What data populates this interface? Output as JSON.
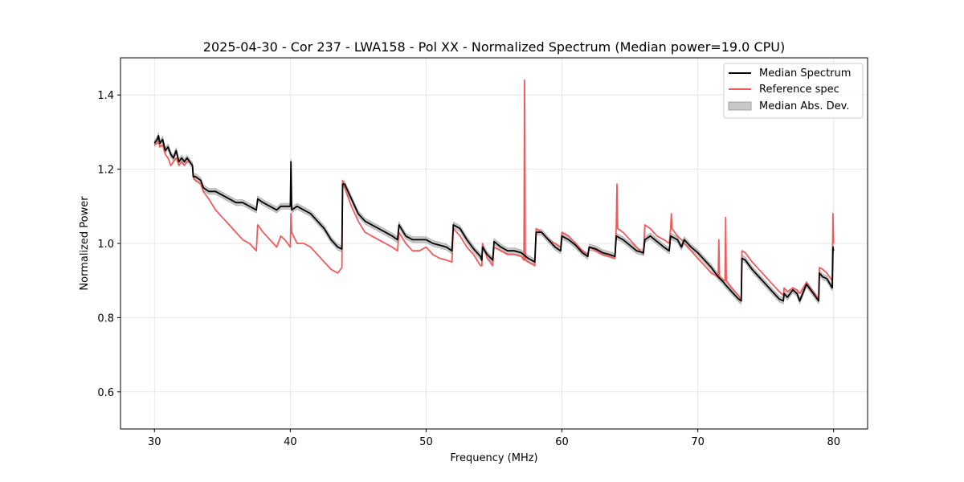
{
  "chart_data": {
    "type": "line",
    "title": "2025-04-30 - Cor 237 - LWA158 - Pol XX - Normalized Spectrum (Median power=19.0 CPU)",
    "xlabel": "Frequency (MHz)",
    "ylabel": "Normalized Power",
    "xlim": [
      27.5,
      82.5
    ],
    "ylim": [
      0.5,
      1.5
    ],
    "xticks": [
      30,
      40,
      50,
      60,
      70,
      80
    ],
    "yticks": [
      0.6,
      0.8,
      1.0,
      1.2,
      1.4
    ],
    "grid": true,
    "legend_position": "top-right",
    "legend": [
      "Median Spectrum",
      "Reference spec",
      "Median Abs. Dev."
    ],
    "colors": {
      "median": "#000000",
      "reference": "#f05a5a",
      "mad_fill": "#c8c8c8",
      "mad_edge": "#a0a0a0",
      "grid": "#e6e6e6"
    },
    "mad_halfwidth": 0.008,
    "series": [
      {
        "name": "Median Spectrum",
        "x": [
          30.0,
          30.2,
          30.3,
          30.4,
          30.6,
          30.8,
          31.0,
          31.2,
          31.4,
          31.6,
          31.8,
          32.0,
          32.2,
          32.4,
          32.6,
          32.8,
          32.85,
          33.0,
          33.4,
          33.6,
          34.0,
          34.5,
          35.0,
          35.5,
          36.0,
          36.5,
          37.0,
          37.5,
          37.6,
          38.0,
          38.5,
          39.0,
          39.3,
          39.6,
          40.0,
          40.05,
          40.1,
          40.5,
          41.0,
          41.5,
          42.0,
          42.5,
          43.0,
          43.5,
          43.8,
          43.85,
          44.0,
          44.5,
          45.0,
          45.5,
          46.0,
          46.5,
          47.0,
          47.5,
          47.9,
          48.0,
          48.5,
          49.0,
          49.5,
          50.0,
          50.5,
          51.0,
          51.5,
          51.9,
          52.0,
          52.5,
          53.0,
          53.5,
          54.0,
          54.1,
          54.15,
          54.5,
          54.9,
          55.0,
          55.5,
          56.0,
          56.5,
          57.0,
          57.5,
          58.0,
          58.1,
          58.5,
          59.0,
          59.5,
          59.9,
          60.0,
          60.5,
          61.0,
          61.5,
          61.9,
          62.0,
          62.5,
          63.0,
          63.5,
          63.9,
          64.0,
          64.5,
          65.0,
          65.5,
          66.0,
          66.1,
          66.5,
          67.0,
          67.5,
          67.9,
          68.0,
          68.5,
          68.8,
          69.0,
          69.5,
          70.0,
          70.5,
          71.0,
          71.5,
          71.9,
          72.0,
          72.5,
          73.0,
          73.2,
          73.25,
          73.5,
          74.0,
          74.5,
          75.0,
          75.5,
          76.0,
          76.3,
          76.35,
          76.6,
          77.0,
          77.3,
          77.5,
          78.0,
          78.5,
          78.9,
          78.95,
          79.2,
          79.5,
          79.9,
          79.95,
          80.0
        ],
        "values": [
          1.27,
          1.28,
          1.29,
          1.27,
          1.28,
          1.25,
          1.26,
          1.24,
          1.23,
          1.25,
          1.22,
          1.23,
          1.22,
          1.23,
          1.22,
          1.21,
          1.18,
          1.18,
          1.17,
          1.15,
          1.14,
          1.14,
          1.13,
          1.12,
          1.11,
          1.11,
          1.1,
          1.09,
          1.12,
          1.11,
          1.1,
          1.09,
          1.1,
          1.1,
          1.1,
          1.22,
          1.09,
          1.1,
          1.09,
          1.08,
          1.06,
          1.04,
          1.01,
          0.99,
          0.985,
          1.16,
          1.16,
          1.12,
          1.08,
          1.06,
          1.05,
          1.04,
          1.03,
          1.02,
          1.01,
          1.05,
          1.02,
          1.01,
          1.01,
          1.01,
          1.0,
          0.995,
          0.99,
          0.98,
          1.05,
          1.04,
          1.01,
          0.985,
          0.965,
          0.955,
          0.99,
          0.97,
          0.955,
          1.005,
          0.99,
          0.98,
          0.98,
          0.975,
          0.96,
          0.95,
          1.03,
          1.03,
          1.01,
          0.99,
          0.98,
          1.02,
          1.01,
          0.995,
          0.975,
          0.965,
          0.99,
          0.985,
          0.975,
          0.97,
          0.965,
          1.02,
          1.01,
          0.995,
          0.98,
          0.975,
          1.01,
          1.02,
          1.005,
          0.99,
          0.98,
          1.02,
          1.01,
          0.99,
          1.01,
          0.99,
          0.975,
          0.955,
          0.935,
          0.91,
          0.895,
          0.89,
          0.87,
          0.85,
          0.845,
          0.96,
          0.955,
          0.93,
          0.91,
          0.89,
          0.87,
          0.85,
          0.845,
          0.865,
          0.855,
          0.875,
          0.865,
          0.845,
          0.89,
          0.865,
          0.845,
          0.92,
          0.91,
          0.905,
          0.88,
          0.99,
          0.98
        ]
      },
      {
        "name": "Reference spec",
        "x": [
          30.0,
          30.2,
          30.3,
          30.4,
          30.6,
          30.8,
          31.0,
          31.2,
          31.4,
          31.6,
          31.8,
          32.0,
          32.2,
          32.4,
          32.6,
          32.8,
          32.85,
          33.0,
          33.4,
          33.6,
          34.0,
          34.5,
          35.0,
          35.5,
          36.0,
          36.5,
          37.0,
          37.5,
          37.6,
          38.0,
          38.5,
          39.0,
          39.3,
          39.6,
          40.0,
          40.05,
          40.1,
          40.5,
          41.0,
          41.5,
          42.0,
          42.5,
          43.0,
          43.5,
          43.8,
          43.85,
          44.0,
          44.5,
          45.0,
          45.5,
          46.0,
          46.5,
          47.0,
          47.5,
          47.9,
          48.0,
          48.5,
          49.0,
          49.5,
          50.0,
          50.5,
          51.0,
          51.5,
          51.9,
          52.0,
          52.5,
          53.0,
          53.5,
          54.0,
          54.1,
          54.15,
          54.5,
          54.9,
          55.0,
          55.5,
          56.0,
          56.5,
          57.0,
          57.2,
          57.25,
          57.3,
          57.5,
          58.0,
          58.1,
          58.5,
          59.0,
          59.5,
          59.9,
          60.0,
          60.5,
          61.0,
          61.5,
          61.9,
          62.0,
          62.5,
          63.0,
          63.5,
          63.9,
          64.0,
          64.05,
          64.1,
          64.5,
          65.0,
          65.5,
          66.0,
          66.1,
          66.5,
          67.0,
          67.5,
          67.9,
          68.0,
          68.05,
          68.1,
          68.5,
          68.8,
          69.0,
          69.5,
          70.0,
          70.5,
          71.0,
          71.5,
          71.55,
          71.6,
          71.9,
          72.0,
          72.05,
          72.1,
          72.5,
          73.0,
          73.2,
          73.25,
          73.5,
          74.0,
          74.5,
          75.0,
          75.5,
          76.0,
          76.3,
          76.35,
          76.6,
          77.0,
          77.3,
          77.5,
          78.0,
          78.5,
          78.9,
          78.95,
          79.2,
          79.5,
          79.9,
          79.95,
          80.0
        ],
        "values": [
          1.265,
          1.27,
          1.275,
          1.26,
          1.265,
          1.24,
          1.23,
          1.21,
          1.22,
          1.23,
          1.21,
          1.22,
          1.21,
          1.22,
          1.22,
          1.21,
          1.18,
          1.17,
          1.16,
          1.14,
          1.12,
          1.09,
          1.07,
          1.05,
          1.03,
          1.01,
          1.0,
          0.98,
          1.05,
          1.03,
          1.01,
          0.99,
          1.02,
          1.01,
          0.99,
          1.08,
          1.03,
          1.0,
          1.0,
          0.99,
          0.97,
          0.95,
          0.93,
          0.92,
          0.935,
          1.17,
          1.15,
          1.1,
          1.06,
          1.03,
          1.02,
          1.01,
          1.0,
          0.99,
          0.98,
          1.03,
          1.0,
          0.98,
          0.98,
          0.99,
          0.97,
          0.96,
          0.955,
          0.95,
          1.04,
          1.02,
          0.99,
          0.97,
          0.94,
          0.94,
          1.0,
          0.96,
          0.94,
          0.99,
          0.98,
          0.97,
          0.97,
          0.965,
          0.955,
          1.44,
          0.955,
          0.95,
          0.94,
          1.04,
          1.03,
          1.01,
          1.0,
          0.99,
          1.03,
          1.02,
          1.0,
          0.98,
          0.97,
          0.99,
          0.98,
          0.97,
          0.965,
          0.96,
          1.05,
          1.16,
          1.04,
          1.03,
          1.01,
          0.99,
          0.97,
          1.05,
          1.04,
          1.02,
          1.01,
          1.0,
          1.04,
          1.08,
          1.04,
          1.02,
          1.01,
          1.0,
          0.98,
          0.96,
          0.94,
          0.92,
          0.91,
          1.01,
          0.91,
          0.9,
          0.9,
          1.07,
          0.9,
          0.88,
          0.86,
          0.845,
          0.98,
          0.975,
          0.95,
          0.93,
          0.91,
          0.89,
          0.87,
          0.86,
          0.88,
          0.87,
          0.88,
          0.875,
          0.865,
          0.895,
          0.87,
          0.85,
          0.935,
          0.93,
          0.92,
          0.9,
          1.08,
          1.0
        ]
      }
    ]
  }
}
